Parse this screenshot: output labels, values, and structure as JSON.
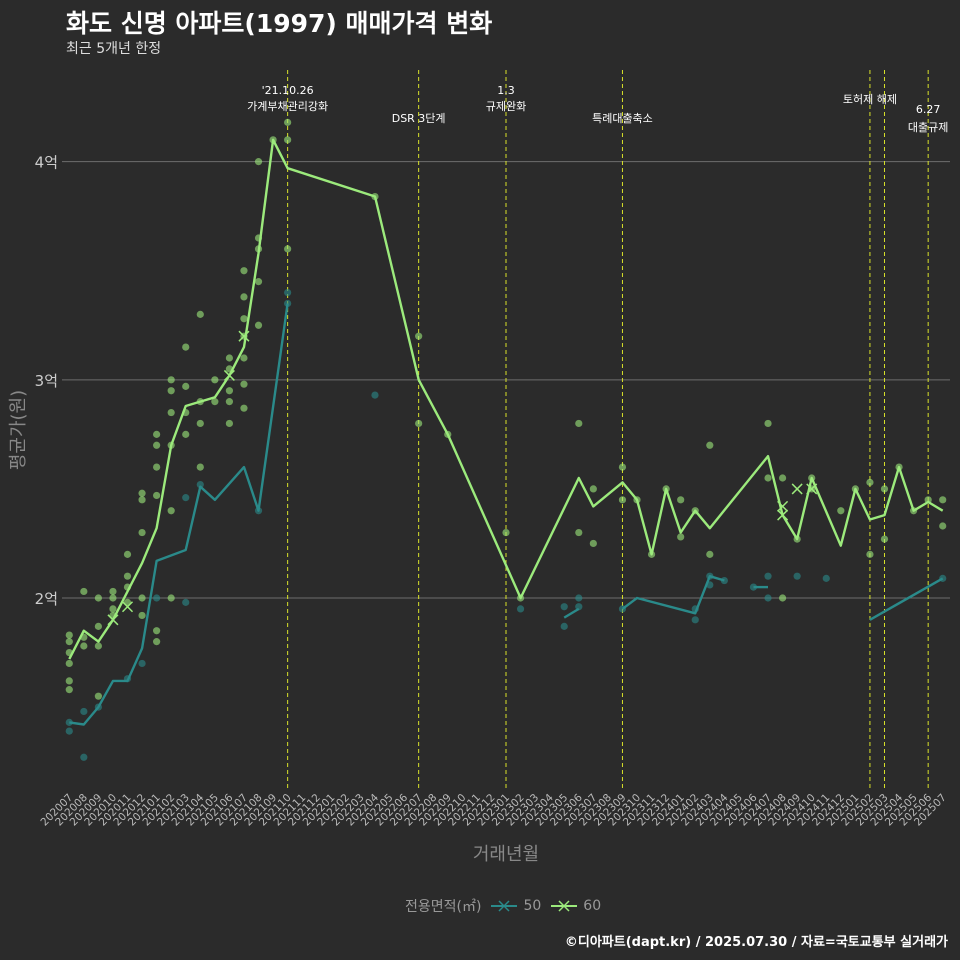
{
  "title": "화도 신명 아파트(1997) 매매가격 변화",
  "subtitle": "최근 5개년 한정",
  "footer": "©디아파트(dapt.kr) / 2025.07.30 / 자료=국토교통부 실거래가",
  "legend": {
    "title": "전용면적(㎡)",
    "items": [
      {
        "label": "50",
        "color": "#2a8a8a"
      },
      {
        "label": "60",
        "color": "#9cea7c"
      }
    ]
  },
  "chart_data": {
    "type": "line",
    "xlabel": "거래년월",
    "ylabel": "평균가(원)",
    "x": [
      "202007",
      "202008",
      "202009",
      "202010",
      "202011",
      "202012",
      "202101",
      "202102",
      "202103",
      "202104",
      "202105",
      "202106",
      "202107",
      "202108",
      "202109",
      "202110",
      "202111",
      "202112",
      "202201",
      "202202",
      "202203",
      "202204",
      "202205",
      "202206",
      "202207",
      "202208",
      "202209",
      "202210",
      "202211",
      "202212",
      "202301",
      "202302",
      "202303",
      "202304",
      "202305",
      "202306",
      "202307",
      "202308",
      "202309",
      "202310",
      "202311",
      "202312",
      "202401",
      "202402",
      "202403",
      "202404",
      "202405",
      "202406",
      "202407",
      "202408",
      "202409",
      "202410",
      "202411",
      "202412",
      "202501",
      "202502",
      "202503",
      "202504",
      "202505",
      "202506",
      "202507"
    ],
    "yticks": [
      {
        "value": 2.0,
        "label": "2억"
      },
      {
        "value": 3.0,
        "label": "3억"
      },
      {
        "value": 4.0,
        "label": "4억"
      }
    ],
    "ylim": [
      1.12,
      4.42
    ],
    "grid": true,
    "legend_position": "bottom",
    "series": [
      {
        "name": "50",
        "color": "#2a8a8a",
        "line": [
          [
            "202007",
            1.43
          ],
          [
            "202008",
            1.42
          ],
          [
            "202009",
            1.5
          ],
          [
            "202010",
            1.62
          ],
          [
            "202011",
            1.62
          ],
          [
            "202012",
            1.77
          ],
          [
            "202101",
            2.17
          ],
          [
            "202103",
            2.22
          ],
          [
            "202104",
            2.51
          ],
          [
            "202105",
            2.45
          ],
          [
            "202107",
            2.6
          ],
          [
            "202108",
            2.4
          ],
          [
            "202110",
            3.35
          ],
          null,
          [
            "202305",
            1.91
          ],
          [
            "202306",
            1.95
          ],
          null,
          [
            "202309",
            1.95
          ],
          [
            "202310",
            2.0
          ],
          [
            "202402",
            1.93
          ],
          [
            "202403",
            2.1
          ],
          [
            "202404",
            2.08
          ],
          null,
          [
            "202406",
            2.05
          ],
          [
            "202407",
            2.05
          ],
          null,
          [
            "202502",
            1.9
          ],
          [
            "202507",
            2.09
          ]
        ],
        "points": [
          [
            "202007",
            1.39
          ],
          [
            "202007",
            1.43
          ],
          [
            "202008",
            1.27
          ],
          [
            "202008",
            1.48
          ],
          [
            "202009",
            1.5
          ],
          [
            "202011",
            1.63
          ],
          [
            "202012",
            1.7
          ],
          [
            "202101",
            2.0
          ],
          [
            "202103",
            1.98
          ],
          [
            "202103",
            2.46
          ],
          [
            "202104",
            2.52
          ],
          [
            "202108",
            2.4
          ],
          [
            "202110",
            3.35
          ],
          [
            "202110",
            3.4
          ],
          [
            "202204",
            2.93
          ],
          [
            "202302",
            1.95
          ],
          [
            "202305",
            1.87
          ],
          [
            "202305",
            1.96
          ],
          [
            "202306",
            2.0
          ],
          [
            "202306",
            1.96
          ],
          [
            "202309",
            1.95
          ],
          [
            "202402",
            1.9
          ],
          [
            "202402",
            1.95
          ],
          [
            "202403",
            2.06
          ],
          [
            "202403",
            2.1
          ],
          [
            "202404",
            2.08
          ],
          [
            "202406",
            2.05
          ],
          [
            "202407",
            2.0
          ],
          [
            "202407",
            2.1
          ],
          [
            "202409",
            2.1
          ],
          [
            "202411",
            2.09
          ],
          [
            "202507",
            2.09
          ]
        ],
        "crosses": []
      },
      {
        "name": "60",
        "color": "#9cea7c",
        "line": [
          [
            "202007",
            1.72
          ],
          [
            "202008",
            1.85
          ],
          [
            "202009",
            1.8
          ],
          [
            "202010",
            1.9
          ],
          [
            "202011",
            2.03
          ],
          [
            "202012",
            2.16
          ],
          [
            "202101",
            2.32
          ],
          [
            "202102",
            2.7
          ],
          [
            "202103",
            2.88
          ],
          [
            "202104",
            2.9
          ],
          [
            "202105",
            2.92
          ],
          [
            "202106",
            3.02
          ],
          [
            "202107",
            3.15
          ],
          [
            "202108",
            3.58
          ],
          [
            "202109",
            4.1
          ],
          [
            "202110",
            3.97
          ],
          [
            "202204",
            3.84
          ],
          [
            "202207",
            3.0
          ],
          [
            "202209",
            2.75
          ],
          [
            "202302",
            2.0
          ],
          [
            "202306",
            2.55
          ],
          [
            "202307",
            2.42
          ],
          [
            "202309",
            2.53
          ],
          [
            "202310",
            2.45
          ],
          [
            "202311",
            2.2
          ],
          [
            "202312",
            2.5
          ],
          [
            "202401",
            2.3
          ],
          [
            "202402",
            2.4
          ],
          [
            "202403",
            2.32
          ],
          [
            "202407",
            2.65
          ],
          [
            "202408",
            2.38
          ],
          [
            "202409",
            2.27
          ],
          [
            "202410",
            2.55
          ],
          [
            "202412",
            2.24
          ],
          [
            "202501",
            2.5
          ],
          [
            "202502",
            2.36
          ],
          [
            "202503",
            2.38
          ],
          [
            "202504",
            2.6
          ],
          [
            "202505",
            2.4
          ],
          [
            "202506",
            2.44
          ],
          [
            "202507",
            2.4
          ]
        ],
        "points": [
          [
            "202007",
            1.58
          ],
          [
            "202007",
            1.62
          ],
          [
            "202007",
            1.7
          ],
          [
            "202007",
            1.75
          ],
          [
            "202007",
            1.8
          ],
          [
            "202007",
            1.83
          ],
          [
            "202008",
            1.78
          ],
          [
            "202008",
            1.82
          ],
          [
            "202008",
            2.03
          ],
          [
            "202009",
            1.55
          ],
          [
            "202009",
            1.78
          ],
          [
            "202009",
            1.87
          ],
          [
            "202009",
            2.0
          ],
          [
            "202010",
            1.92
          ],
          [
            "202010",
            1.95
          ],
          [
            "202010",
            2.0
          ],
          [
            "202010",
            2.03
          ],
          [
            "202011",
            1.98
          ],
          [
            "202011",
            2.05
          ],
          [
            "202011",
            2.1
          ],
          [
            "202011",
            2.2
          ],
          [
            "202012",
            1.92
          ],
          [
            "202012",
            2.0
          ],
          [
            "202012",
            2.3
          ],
          [
            "202012",
            2.45
          ],
          [
            "202012",
            2.48
          ],
          [
            "202101",
            1.8
          ],
          [
            "202101",
            1.85
          ],
          [
            "202101",
            2.47
          ],
          [
            "202101",
            2.6
          ],
          [
            "202101",
            2.7
          ],
          [
            "202101",
            2.75
          ],
          [
            "202102",
            2.0
          ],
          [
            "202102",
            2.4
          ],
          [
            "202102",
            2.7
          ],
          [
            "202102",
            2.85
          ],
          [
            "202102",
            2.95
          ],
          [
            "202102",
            3.0
          ],
          [
            "202103",
            2.75
          ],
          [
            "202103",
            2.85
          ],
          [
            "202103",
            2.97
          ],
          [
            "202103",
            3.15
          ],
          [
            "202104",
            2.6
          ],
          [
            "202104",
            2.8
          ],
          [
            "202104",
            2.9
          ],
          [
            "202104",
            3.3
          ],
          [
            "202105",
            2.9
          ],
          [
            "202105",
            3.0
          ],
          [
            "202106",
            2.8
          ],
          [
            "202106",
            2.9
          ],
          [
            "202106",
            2.95
          ],
          [
            "202106",
            3.05
          ],
          [
            "202106",
            3.1
          ],
          [
            "202107",
            2.87
          ],
          [
            "202107",
            2.98
          ],
          [
            "202107",
            3.1
          ],
          [
            "202107",
            3.2
          ],
          [
            "202107",
            3.28
          ],
          [
            "202107",
            3.38
          ],
          [
            "202107",
            3.5
          ],
          [
            "202108",
            3.25
          ],
          [
            "202108",
            3.45
          ],
          [
            "202108",
            3.6
          ],
          [
            "202108",
            3.65
          ],
          [
            "202108",
            4.0
          ],
          [
            "202109",
            4.1
          ],
          [
            "202110",
            3.6
          ],
          [
            "202110",
            4.1
          ],
          [
            "202110",
            4.18
          ],
          [
            "202204",
            3.84
          ],
          [
            "202207",
            2.8
          ],
          [
            "202207",
            3.2
          ],
          [
            "202209",
            2.75
          ],
          [
            "202301",
            2.3
          ],
          [
            "202302",
            2.0
          ],
          [
            "202306",
            2.3
          ],
          [
            "202306",
            2.8
          ],
          [
            "202307",
            2.25
          ],
          [
            "202307",
            2.5
          ],
          [
            "202309",
            2.45
          ],
          [
            "202309",
            2.6
          ],
          [
            "202310",
            2.45
          ],
          [
            "202311",
            2.2
          ],
          [
            "202312",
            2.5
          ],
          [
            "202401",
            2.28
          ],
          [
            "202401",
            2.45
          ],
          [
            "202402",
            2.4
          ],
          [
            "202403",
            2.2
          ],
          [
            "202403",
            2.7
          ],
          [
            "202407",
            2.55
          ],
          [
            "202407",
            2.8
          ],
          [
            "202408",
            2.0
          ],
          [
            "202408",
            2.55
          ],
          [
            "202409",
            2.27
          ],
          [
            "202410",
            2.5
          ],
          [
            "202410",
            2.55
          ],
          [
            "202412",
            2.4
          ],
          [
            "202501",
            2.5
          ],
          [
            "202502",
            2.2
          ],
          [
            "202502",
            2.53
          ],
          [
            "202503",
            2.27
          ],
          [
            "202503",
            2.5
          ],
          [
            "202504",
            2.6
          ],
          [
            "202505",
            2.4
          ],
          [
            "202506",
            2.45
          ],
          [
            "202507",
            2.33
          ],
          [
            "202507",
            2.45
          ]
        ],
        "crosses": [
          [
            "202010",
            1.9
          ],
          [
            "202011",
            1.96
          ],
          [
            "202106",
            3.02
          ],
          [
            "202107",
            3.2
          ],
          [
            "202408",
            2.38
          ],
          [
            "202408",
            2.42
          ],
          [
            "202409",
            2.5
          ],
          [
            "202410",
            2.5
          ]
        ]
      }
    ],
    "annotations": [
      {
        "x": "202110",
        "lines": [
          "'21.10.26",
          "가계부채관리강화"
        ]
      },
      {
        "x": "202207",
        "lines": [
          "DSR 3단계"
        ]
      },
      {
        "x": "202301",
        "lines": [
          "1.3",
          "규제완화"
        ]
      },
      {
        "x": "202309",
        "lines": [
          "특례대출축소"
        ]
      },
      {
        "x": "202502",
        "lines": [
          "토허제 해제"
        ]
      },
      {
        "x": "202503",
        "lines": []
      },
      {
        "x": "202506",
        "lines": [
          "6.27",
          "대출규제"
        ]
      }
    ]
  }
}
